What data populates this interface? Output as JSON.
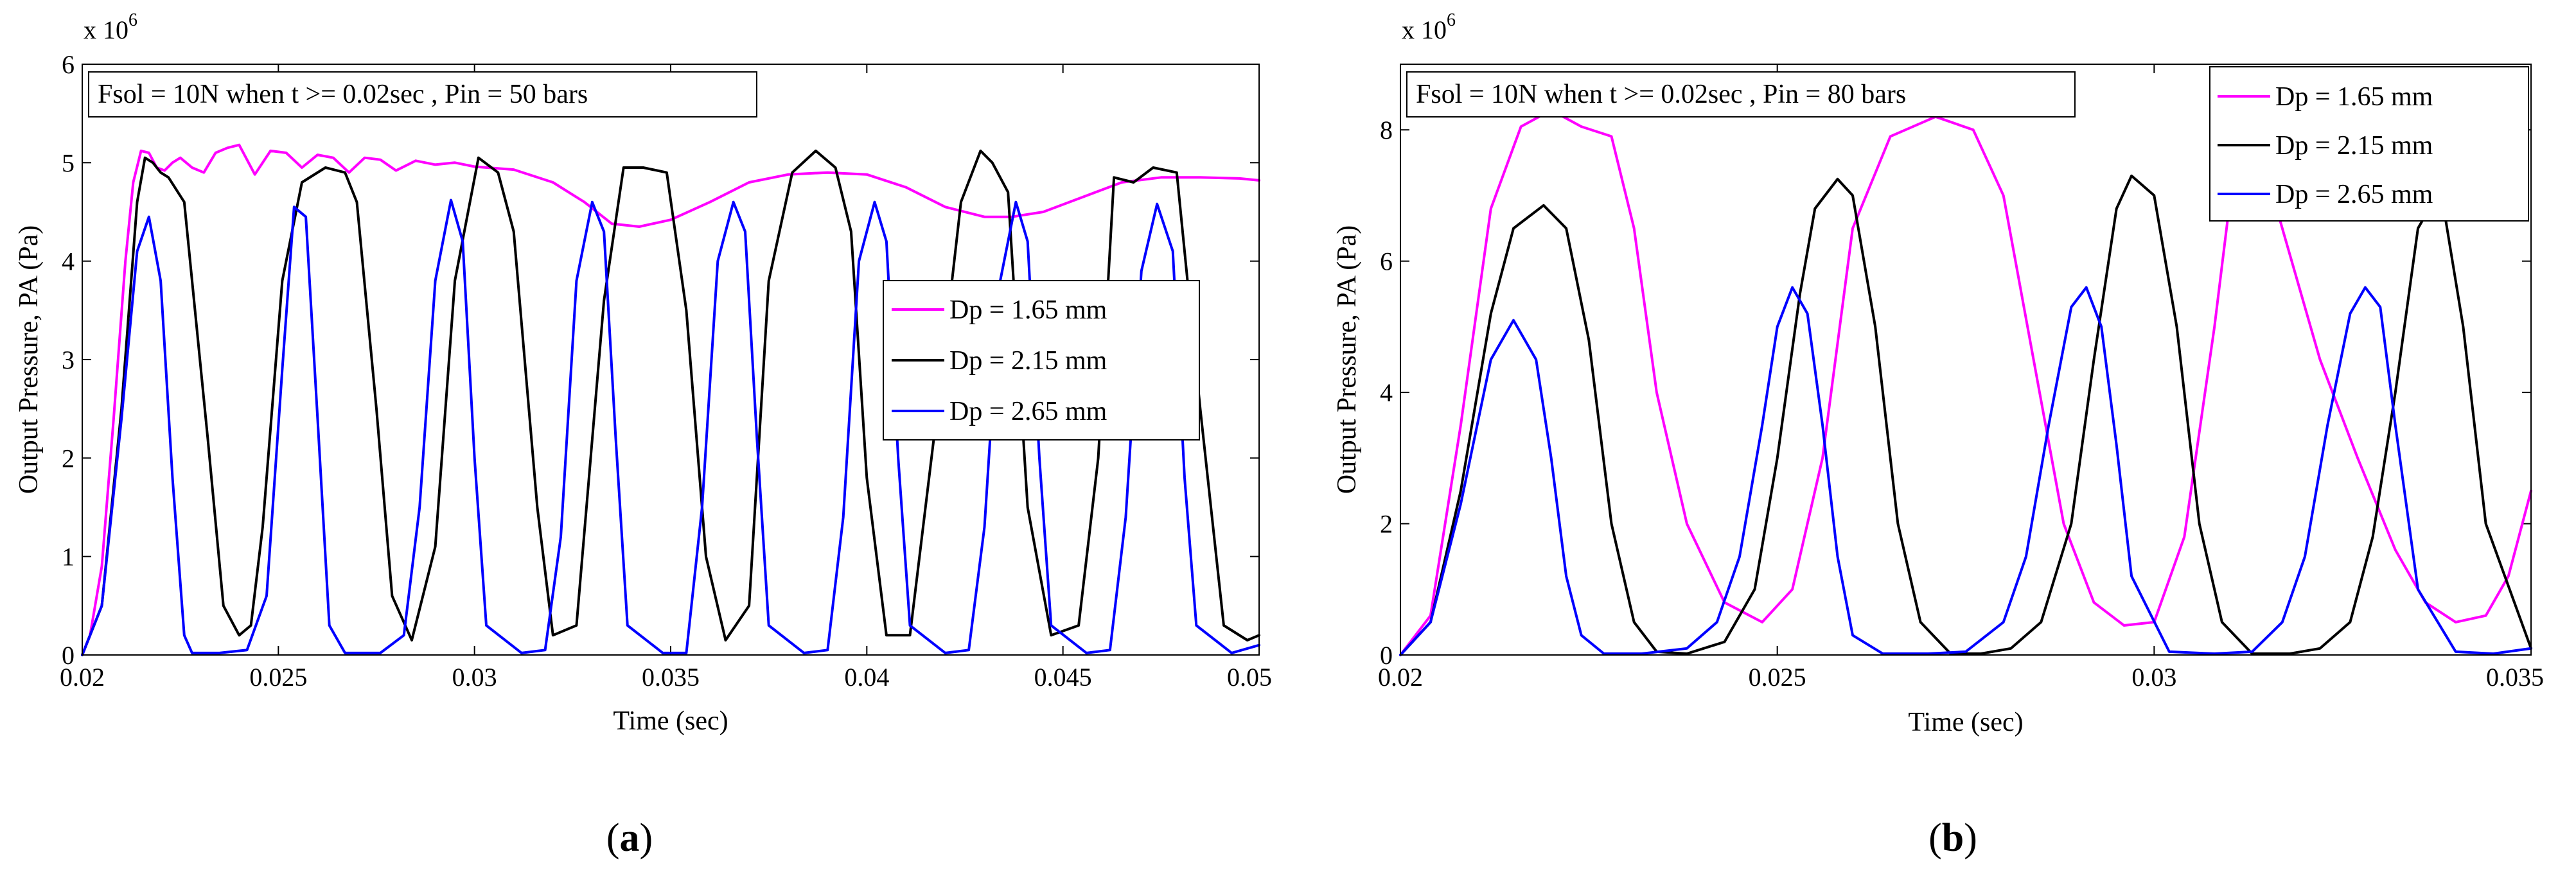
{
  "chart_data": [
    {
      "type": "line",
      "panel_label": "a",
      "title": "",
      "xlabel": "Time (sec)",
      "ylabel": "Output Pressure, PA (Pa)",
      "y_multiplier": "x 10",
      "y_exponent": "6",
      "xlim": [
        0.02,
        0.05
      ],
      "ylim": [
        0,
        6
      ],
      "xticks": [
        0.02,
        0.025,
        0.03,
        0.035,
        0.04,
        0.045,
        0.05
      ],
      "xtick_labels": [
        "0.02",
        "0.025",
        "0.03",
        "0.035",
        "0.04",
        "0.045",
        "0.05"
      ],
      "yticks": [
        0,
        1,
        2,
        3,
        4,
        5,
        6
      ],
      "ytick_labels": [
        "0",
        "1",
        "2",
        "3",
        "4",
        "5",
        "6"
      ],
      "annotation": "Fsol = 10N when t >= 0.02sec , Pin = 50 bars",
      "legend_position": "right",
      "series": [
        {
          "name": "Dp = 1.65 mm",
          "color": "#ff00ff",
          "x": [
            0.02,
            0.0202,
            0.0205,
            0.0208,
            0.0211,
            0.0213,
            0.0215,
            0.0217,
            0.0219,
            0.0221,
            0.0223,
            0.0225,
            0.0228,
            0.0231,
            0.0234,
            0.0237,
            0.024,
            0.0244,
            0.0248,
            0.0252,
            0.0256,
            0.026,
            0.0264,
            0.0268,
            0.0272,
            0.0276,
            0.028,
            0.0285,
            0.029,
            0.0295,
            0.03,
            0.031,
            0.032,
            0.0328,
            0.0335,
            0.0342,
            0.035,
            0.036,
            0.037,
            0.038,
            0.039,
            0.04,
            0.041,
            0.042,
            0.043,
            0.0437,
            0.0445,
            0.0455,
            0.0465,
            0.0475,
            0.0485,
            0.0495,
            0.05
          ],
          "y": [
            0,
            0.2,
            0.9,
            2.4,
            4.0,
            4.8,
            5.12,
            5.1,
            4.95,
            4.92,
            5.0,
            5.05,
            4.95,
            4.9,
            5.1,
            5.15,
            5.18,
            4.88,
            5.12,
            5.1,
            4.95,
            5.08,
            5.05,
            4.9,
            5.05,
            5.03,
            4.92,
            5.02,
            4.98,
            5.0,
            4.96,
            4.93,
            4.8,
            4.6,
            4.38,
            4.35,
            4.42,
            4.6,
            4.8,
            4.88,
            4.9,
            4.88,
            4.75,
            4.55,
            4.45,
            4.45,
            4.5,
            4.65,
            4.8,
            4.85,
            4.85,
            4.84,
            4.82
          ]
        },
        {
          "name": "Dp = 2.15 mm",
          "color": "#000000",
          "x": [
            0.02,
            0.0205,
            0.021,
            0.0214,
            0.0216,
            0.0218,
            0.022,
            0.0222,
            0.0226,
            0.0232,
            0.0236,
            0.024,
            0.0243,
            0.0246,
            0.0251,
            0.0256,
            0.0262,
            0.0267,
            0.027,
            0.0275,
            0.0279,
            0.0284,
            0.029,
            0.0295,
            0.0301,
            0.0306,
            0.031,
            0.0316,
            0.032,
            0.0326,
            0.0333,
            0.0338,
            0.0343,
            0.0349,
            0.0354,
            0.0359,
            0.0364,
            0.037,
            0.0375,
            0.0381,
            0.0387,
            0.0392,
            0.0396,
            0.04,
            0.0405,
            0.0411,
            0.0418,
            0.0424,
            0.0429,
            0.0432,
            0.0436,
            0.0441,
            0.0447,
            0.0454,
            0.0459,
            0.0463,
            0.0468,
            0.0473,
            0.0479,
            0.0485,
            0.0491,
            0.0497,
            0.05
          ],
          "y": [
            0,
            0.5,
            2.5,
            4.6,
            5.05,
            5.0,
            4.9,
            4.85,
            4.6,
            2.2,
            0.5,
            0.2,
            0.3,
            1.3,
            3.8,
            4.8,
            4.95,
            4.9,
            4.6,
            2.5,
            0.6,
            0.15,
            1.1,
            3.8,
            5.05,
            4.9,
            4.3,
            1.5,
            0.2,
            0.3,
            3.6,
            4.95,
            4.95,
            4.9,
            3.5,
            1.0,
            0.15,
            0.5,
            3.8,
            4.9,
            5.12,
            4.95,
            4.3,
            1.8,
            0.2,
            0.2,
            2.5,
            4.6,
            5.12,
            5.0,
            4.7,
            1.5,
            0.2,
            0.3,
            2.0,
            4.85,
            4.8,
            4.95,
            4.9,
            2.5,
            0.3,
            0.15,
            0.2
          ]
        },
        {
          "name": "Dp = 2.65 mm",
          "color": "#0000ff",
          "x": [
            0.02,
            0.0205,
            0.021,
            0.0214,
            0.0217,
            0.022,
            0.0223,
            0.0226,
            0.0228,
            0.0235,
            0.0242,
            0.0247,
            0.0251,
            0.0254,
            0.0257,
            0.026,
            0.0263,
            0.0267,
            0.0276,
            0.0282,
            0.0286,
            0.029,
            0.0294,
            0.0297,
            0.03,
            0.0303,
            0.0312,
            0.0318,
            0.0322,
            0.0326,
            0.033,
            0.0333,
            0.0336,
            0.0339,
            0.0348,
            0.0354,
            0.0358,
            0.0362,
            0.0366,
            0.0369,
            0.0372,
            0.0375,
            0.0384,
            0.039,
            0.0394,
            0.0398,
            0.0402,
            0.0405,
            0.0408,
            0.0411,
            0.042,
            0.0426,
            0.043,
            0.0434,
            0.0438,
            0.0441,
            0.0444,
            0.0447,
            0.0456,
            0.0462,
            0.0466,
            0.047,
            0.0474,
            0.0478,
            0.0481,
            0.0484,
            0.0493,
            0.05
          ],
          "y": [
            0,
            0.5,
            2.4,
            4.1,
            4.45,
            3.8,
            1.8,
            0.2,
            0.02,
            0.02,
            0.05,
            0.6,
            2.9,
            4.55,
            4.45,
            2.4,
            0.3,
            0.02,
            0.02,
            0.2,
            1.5,
            3.8,
            4.62,
            4.2,
            2.0,
            0.3,
            0.02,
            0.05,
            1.2,
            3.8,
            4.6,
            4.3,
            2.2,
            0.3,
            0.02,
            0.02,
            1.5,
            4.0,
            4.6,
            4.3,
            2.2,
            0.3,
            0.02,
            0.05,
            1.4,
            4.0,
            4.6,
            4.2,
            2.0,
            0.3,
            0.02,
            0.05,
            1.3,
            3.8,
            4.6,
            4.2,
            2.0,
            0.3,
            0.02,
            0.05,
            1.4,
            3.9,
            4.58,
            4.1,
            1.8,
            0.3,
            0.02,
            0.1
          ]
        }
      ]
    },
    {
      "type": "line",
      "panel_label": "b",
      "title": "",
      "xlabel": "Time (sec)",
      "ylabel": "Output Pressure, PA (Pa)",
      "y_multiplier": "x 10",
      "y_exponent": "6",
      "xlim": [
        0.02,
        0.035
      ],
      "ylim": [
        0,
        9
      ],
      "xticks": [
        0.02,
        0.025,
        0.03,
        0.035
      ],
      "xtick_labels": [
        "0.02",
        "0.025",
        "0.03",
        "0.035"
      ],
      "yticks": [
        0,
        2,
        4,
        6,
        8
      ],
      "ytick_labels": [
        "0",
        "2",
        "4",
        "6",
        "8"
      ],
      "annotation": "Fsol = 10N when t >= 0.02sec , Pin = 80 bars",
      "legend_position": "top-right",
      "series": [
        {
          "name": "Dp = 1.65 mm",
          "color": "#ff00ff",
          "x": [
            0.02,
            0.0204,
            0.0208,
            0.0212,
            0.0216,
            0.022,
            0.0224,
            0.0228,
            0.0231,
            0.0234,
            0.0238,
            0.0243,
            0.0248,
            0.0252,
            0.0256,
            0.026,
            0.0265,
            0.0271,
            0.0276,
            0.028,
            0.0284,
            0.0288,
            0.0292,
            0.0296,
            0.03,
            0.0304,
            0.0308,
            0.0311,
            0.0313,
            0.0317,
            0.0322,
            0.0327,
            0.0332,
            0.0336,
            0.034,
            0.0344,
            0.0347,
            0.035
          ],
          "y": [
            0,
            0.6,
            3.5,
            6.8,
            8.05,
            8.3,
            8.05,
            7.9,
            6.5,
            4.0,
            2.0,
            0.8,
            0.5,
            1.0,
            3.0,
            6.5,
            7.9,
            8.2,
            8.0,
            7.0,
            4.5,
            2.0,
            0.8,
            0.45,
            0.5,
            1.8,
            5.0,
            7.8,
            8.1,
            6.5,
            4.5,
            3.0,
            1.6,
            0.8,
            0.5,
            0.6,
            1.2,
            2.5
          ]
        },
        {
          "name": "Dp = 2.15 mm",
          "color": "#000000",
          "x": [
            0.02,
            0.0204,
            0.0208,
            0.0212,
            0.0215,
            0.0219,
            0.0222,
            0.0225,
            0.0228,
            0.0231,
            0.0234,
            0.0238,
            0.0243,
            0.0247,
            0.025,
            0.0253,
            0.0255,
            0.0258,
            0.026,
            0.0263,
            0.0266,
            0.0269,
            0.0273,
            0.0277,
            0.0281,
            0.0285,
            0.0289,
            0.0292,
            0.0295,
            0.0297,
            0.03,
            0.0303,
            0.0306,
            0.0309,
            0.0313,
            0.0318,
            0.0322,
            0.0326,
            0.0329,
            0.0332,
            0.0335,
            0.0338,
            0.0341,
            0.0344,
            0.035
          ],
          "y": [
            0,
            0.5,
            2.5,
            5.2,
            6.5,
            6.85,
            6.5,
            4.8,
            2.0,
            0.5,
            0.05,
            0.02,
            0.2,
            1.0,
            3.0,
            5.5,
            6.8,
            7.25,
            7.0,
            5.0,
            2.0,
            0.5,
            0.02,
            0.02,
            0.1,
            0.5,
            2.0,
            4.5,
            6.8,
            7.3,
            7.0,
            5.0,
            2.0,
            0.5,
            0.02,
            0.02,
            0.1,
            0.5,
            1.8,
            4.0,
            6.5,
            7.1,
            5.0,
            2.0,
            0.1
          ]
        },
        {
          "name": "Dp = 2.65 mm",
          "color": "#0000ff",
          "x": [
            0.02,
            0.0204,
            0.0208,
            0.0212,
            0.0215,
            0.0218,
            0.022,
            0.0222,
            0.0224,
            0.0227,
            0.0232,
            0.0238,
            0.0242,
            0.0245,
            0.0248,
            0.025,
            0.0252,
            0.0254,
            0.0256,
            0.0258,
            0.026,
            0.0264,
            0.027,
            0.0275,
            0.028,
            0.0283,
            0.0286,
            0.0289,
            0.0291,
            0.0293,
            0.0295,
            0.0297,
            0.0302,
            0.0308,
            0.0313,
            0.0317,
            0.032,
            0.0323,
            0.0326,
            0.0328,
            0.033,
            0.0332,
            0.0335,
            0.034,
            0.0345,
            0.035
          ],
          "y": [
            0,
            0.5,
            2.3,
            4.5,
            5.1,
            4.5,
            3.0,
            1.2,
            0.3,
            0.02,
            0.02,
            0.1,
            0.5,
            1.5,
            3.5,
            5.0,
            5.6,
            5.2,
            3.5,
            1.5,
            0.3,
            0.02,
            0.02,
            0.05,
            0.5,
            1.5,
            3.5,
            5.3,
            5.6,
            5.0,
            3.2,
            1.2,
            0.05,
            0.02,
            0.05,
            0.5,
            1.5,
            3.5,
            5.2,
            5.6,
            5.3,
            3.5,
            1.0,
            0.05,
            0.02,
            0.1
          ]
        }
      ]
    }
  ]
}
